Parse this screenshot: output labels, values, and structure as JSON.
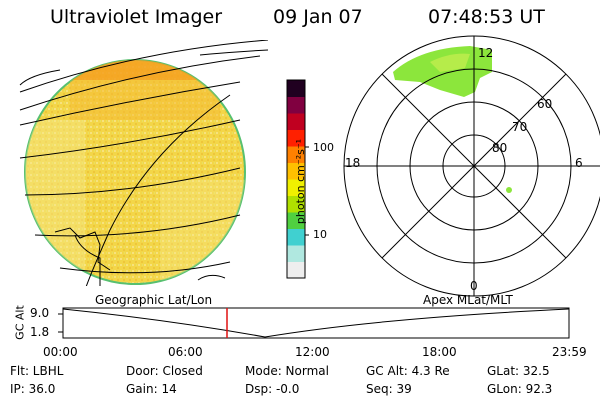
{
  "header": {
    "title": "Ultraviolet Imager",
    "date": "09 Jan 07",
    "time": "07:48:53 UT"
  },
  "colorbar": {
    "unit_label": "photon cm⁻²s⁻¹",
    "ticks": [
      "100",
      "10"
    ],
    "scale": "log",
    "stops": [
      "#eeeeee",
      "#b0e8e0",
      "#40d0d0",
      "#50d040",
      "#b0e000",
      "#f0f000",
      "#ffc000",
      "#ff8000",
      "#ff2000",
      "#c00020",
      "#800040",
      "#200020"
    ]
  },
  "polar": {
    "mlt_labels": {
      "top": "12",
      "left": "18",
      "right": "6",
      "bottom": "0"
    },
    "lat_labels": [
      "60",
      "70",
      "80"
    ]
  },
  "altitude_plot": {
    "left_label": "Geographic Lat/Lon",
    "right_label": "Apex MLat/MLT",
    "y_axis_label": "GC Alt",
    "y_ticks": [
      "9.0",
      "1.8"
    ],
    "x_ticks": [
      "00:00",
      "06:00",
      "12:00",
      "18:00",
      "23:59"
    ],
    "current_time_marker": "07:48:53"
  },
  "status": {
    "filter": "Flt: LBHL",
    "ip": "IP: 36.0",
    "door": "Door: Closed",
    "gain": "Gain: 14",
    "mode": "Mode: Normal",
    "dsp": "Dsp:   -0.0",
    "gc_alt": "GC Alt: 4.3 Re",
    "seq": "Seq: 39",
    "glat": "GLat:  32.5",
    "glon": "GLon:  92.3"
  },
  "colors": {
    "disk_fill": "#f2d24a",
    "disk_light": "#f6e47a",
    "aurora": "#8ce63c",
    "marker_red": "#e01010"
  }
}
